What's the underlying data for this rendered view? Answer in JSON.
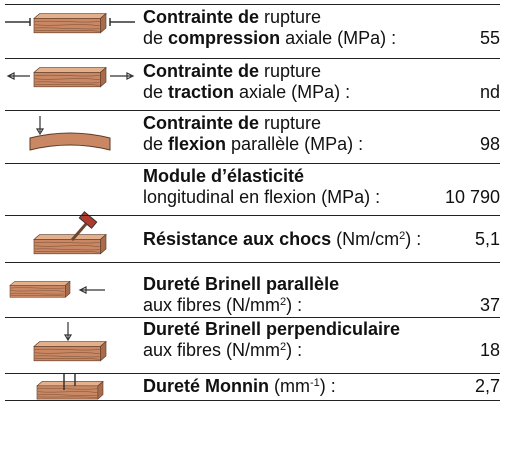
{
  "rows": [
    {
      "lines": [
        [
          {
            "text": "Contrainte de",
            "bold": true
          },
          {
            "text": " rupture"
          }
        ],
        [
          {
            "text": "de "
          },
          {
            "text": "compression",
            "bold": true
          },
          {
            "text": " axiale (MPa) :"
          }
        ]
      ],
      "value": "55"
    },
    {
      "lines": [
        [
          {
            "text": "Contrainte de",
            "bold": true
          },
          {
            "text": " rupture"
          }
        ],
        [
          {
            "text": "de "
          },
          {
            "text": "traction",
            "bold": true
          },
          {
            "text": " axiale (MPa) :"
          }
        ]
      ],
      "value": "nd"
    },
    {
      "lines": [
        [
          {
            "text": "Contrainte de",
            "bold": true
          },
          {
            "text": " rupture"
          }
        ],
        [
          {
            "text": "de "
          },
          {
            "text": "flexion",
            "bold": true
          },
          {
            "text": " parallèle (MPa) :"
          }
        ]
      ],
      "value": "98"
    },
    {
      "lines": [
        [
          {
            "text": "Module d’élasticité",
            "bold": true
          }
        ],
        [
          {
            "text": "longitudinal en flexion (MPa) :"
          }
        ]
      ],
      "value": "10 790"
    },
    {
      "lines": [
        [
          {
            "text": "Résistance aux chocs",
            "bold": true
          },
          {
            "text": " (Nm/cm"
          },
          {
            "text": "2",
            "sup": true
          },
          {
            "text": ") :"
          }
        ]
      ],
      "value": "5,1"
    },
    {
      "lines": [
        [
          {
            "text": "Dureté Brinell parallèle",
            "bold": true
          }
        ],
        [
          {
            "text": "aux fibres (N/mm"
          },
          {
            "text": "2",
            "sup": true
          },
          {
            "text": ") :"
          }
        ]
      ],
      "value": "37"
    },
    {
      "lines": [
        [
          {
            "text": "Dureté Brinell perpendiculaire",
            "bold": true
          }
        ],
        [
          {
            "text": "aux fibres (N/mm"
          },
          {
            "text": "2",
            "sup": true
          },
          {
            "text": ") :"
          }
        ]
      ],
      "value": "18"
    },
    {
      "lines": [
        [
          {
            "text": "Dureté Monnin",
            "bold": true
          },
          {
            "text": " (mm"
          },
          {
            "text": "-1",
            "sup": true
          },
          {
            "text": ") :"
          }
        ]
      ],
      "value": "2,7"
    }
  ]
}
